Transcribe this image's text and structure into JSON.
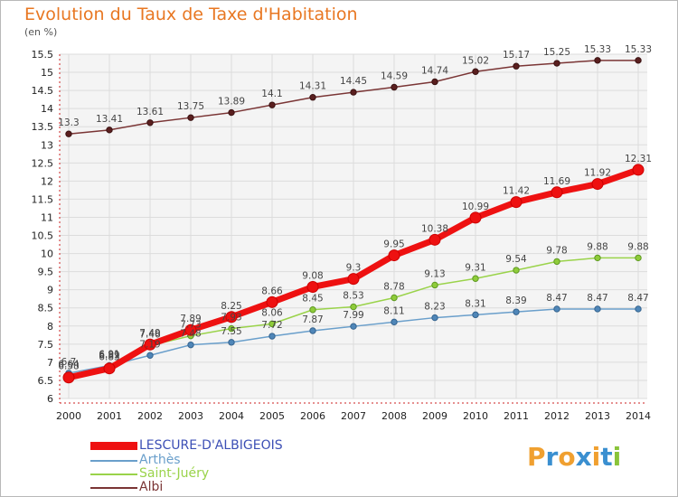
{
  "title": "Evolution du Taux de Taxe d'Habitation",
  "unit": "(en %)",
  "logo_text": "Proxiti",
  "chart_data": {
    "type": "line",
    "x": [
      "2000",
      "2001",
      "2002",
      "2003",
      "2004",
      "2005",
      "2006",
      "2007",
      "2008",
      "2009",
      "2010",
      "2011",
      "2012",
      "2013",
      "2014"
    ],
    "ylim": [
      6,
      15.5
    ],
    "yticks": [
      "6",
      "6.5",
      "7",
      "7.5",
      "8",
      "8.5",
      "9",
      "9.5",
      "10",
      "10.5",
      "11",
      "11.5",
      "12",
      "12.5",
      "13",
      "13.5",
      "14",
      "14.5",
      "15",
      "15.5"
    ],
    "grid": true,
    "legend_position": "bottom-left",
    "series": [
      {
        "name": "LESCURE-D'ALBIGEOIS",
        "color": "#ee1111",
        "values": [
          6.58,
          6.83,
          7.49,
          7.89,
          8.25,
          8.66,
          9.08,
          9.3,
          9.95,
          10.38,
          10.99,
          11.42,
          11.69,
          11.92,
          12.31
        ]
      },
      {
        "name": "Arthès",
        "color": "#6a9fcb",
        "values": [
          6.7,
          6.91,
          7.19,
          7.48,
          7.55,
          7.72,
          7.87,
          7.99,
          8.11,
          8.23,
          8.31,
          8.39,
          8.47,
          8.47,
          8.47
        ]
      },
      {
        "name": "Saint-Juéry",
        "color": "#9ad34a",
        "values": [
          6.64,
          6.89,
          7.46,
          7.73,
          7.93,
          8.06,
          8.45,
          8.53,
          8.78,
          9.13,
          9.31,
          9.54,
          9.78,
          9.88,
          9.88
        ]
      },
      {
        "name": "Albi",
        "color": "#7a3535",
        "values": [
          13.3,
          13.41,
          13.61,
          13.75,
          13.89,
          14.1,
          14.31,
          14.45,
          14.59,
          14.74,
          15.02,
          15.17,
          15.25,
          15.33,
          15.33
        ]
      }
    ],
    "data_labels": [
      [
        "6.58",
        "6.83",
        "7.49",
        "7.89",
        "8.25",
        "8.66",
        "9.08",
        "9.3",
        "9.95",
        "10.38",
        "10.99",
        "11.42",
        "11.69",
        "11.92",
        "12.31"
      ],
      [
        "6.7",
        "6.91",
        "7.19",
        "7.48",
        "7.55",
        "7.72",
        "7.87",
        "7.99",
        "8.11",
        "8.23",
        "8.31",
        "8.39",
        "8.47",
        "8.47",
        "8.47"
      ],
      [
        "6.64",
        "6.89",
        "7.46",
        "7.73",
        "7.93",
        "8.06",
        "8.45",
        "8.53",
        "8.78",
        "9.13",
        "9.31",
        "9.54",
        "9.78",
        "9.88",
        "9.88"
      ],
      [
        "13.3",
        "13.41",
        "13.61",
        "13.75",
        "13.89",
        "14.1",
        "14.31",
        "14.45",
        "14.59",
        "14.74",
        "15.02",
        "15.17",
        "15.25",
        "15.33",
        "15.33"
      ]
    ]
  }
}
